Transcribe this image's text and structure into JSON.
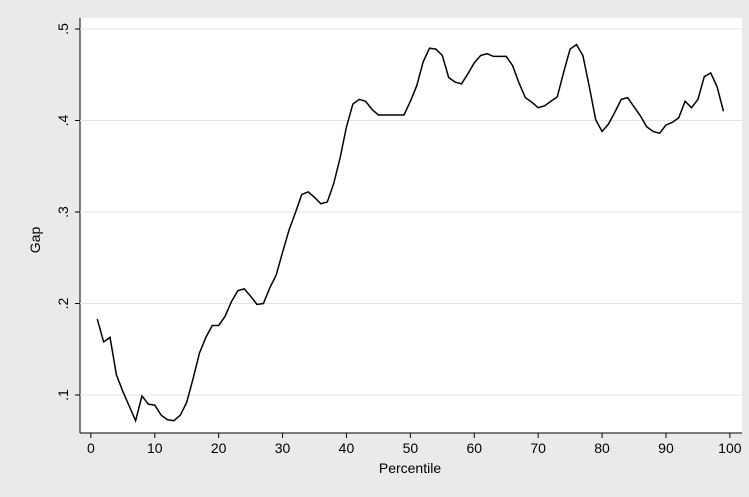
{
  "chart_data": {
    "type": "line",
    "xlabel": "Percentile",
    "ylabel": "Gap",
    "x": [
      1,
      2,
      3,
      4,
      5,
      6,
      7,
      8,
      9,
      10,
      11,
      12,
      13,
      14,
      15,
      16,
      17,
      18,
      19,
      20,
      21,
      22,
      23,
      24,
      25,
      26,
      27,
      28,
      29,
      30,
      31,
      32,
      33,
      34,
      35,
      36,
      37,
      38,
      39,
      40,
      41,
      42,
      43,
      44,
      45,
      46,
      47,
      48,
      49,
      50,
      51,
      52,
      53,
      54,
      55,
      56,
      57,
      58,
      59,
      60,
      61,
      62,
      63,
      64,
      65,
      66,
      67,
      68,
      69,
      70,
      71,
      72,
      73,
      74,
      75,
      76,
      77,
      78,
      79,
      80,
      81,
      82,
      83,
      84,
      85,
      86,
      87,
      88,
      89,
      90,
      91,
      92,
      93,
      94,
      95,
      96,
      97,
      98,
      99
    ],
    "series": [
      {
        "color": "#000000",
        "values": [
          0.183,
          0.158,
          0.163,
          0.122,
          0.104,
          0.088,
          0.072,
          0.099,
          0.09,
          0.089,
          0.078,
          0.073,
          0.072,
          0.078,
          0.092,
          0.118,
          0.146,
          0.163,
          0.176,
          0.176,
          0.186,
          0.202,
          0.214,
          0.216,
          0.208,
          0.199,
          0.2,
          0.217,
          0.231,
          0.256,
          0.28,
          0.299,
          0.319,
          0.322,
          0.316,
          0.309,
          0.311,
          0.331,
          0.359,
          0.393,
          0.418,
          0.423,
          0.421,
          0.412,
          0.406,
          0.406,
          0.406,
          0.406,
          0.406,
          0.421,
          0.438,
          0.464,
          0.479,
          0.478,
          0.471,
          0.447,
          0.442,
          0.44,
          0.451,
          0.463,
          0.471,
          0.473,
          0.47,
          0.47,
          0.47,
          0.46,
          0.441,
          0.425,
          0.42,
          0.414,
          0.416,
          0.421,
          0.426,
          0.453,
          0.478,
          0.483,
          0.471,
          0.437,
          0.401,
          0.388,
          0.396,
          0.409,
          0.423,
          0.425,
          0.415,
          0.405,
          0.393,
          0.388,
          0.386,
          0.395,
          0.398,
          0.403,
          0.421,
          0.414,
          0.423,
          0.448,
          0.452,
          0.437,
          0.41
        ]
      }
    ],
    "xlim": [
      -1.7,
      101.9
    ],
    "xticks": [
      0,
      10,
      20,
      30,
      40,
      50,
      60,
      70,
      80,
      90,
      100
    ],
    "ylim": [
      0.0585,
      0.512
    ],
    "yticks": [
      {
        "value": 0.1,
        "label": ".1"
      },
      {
        "value": 0.2,
        "label": ".2"
      },
      {
        "value": 0.3,
        "label": ".3"
      },
      {
        "value": 0.4,
        "label": ".4"
      },
      {
        "value": 0.5,
        "label": ".5"
      }
    ],
    "grid": true
  }
}
